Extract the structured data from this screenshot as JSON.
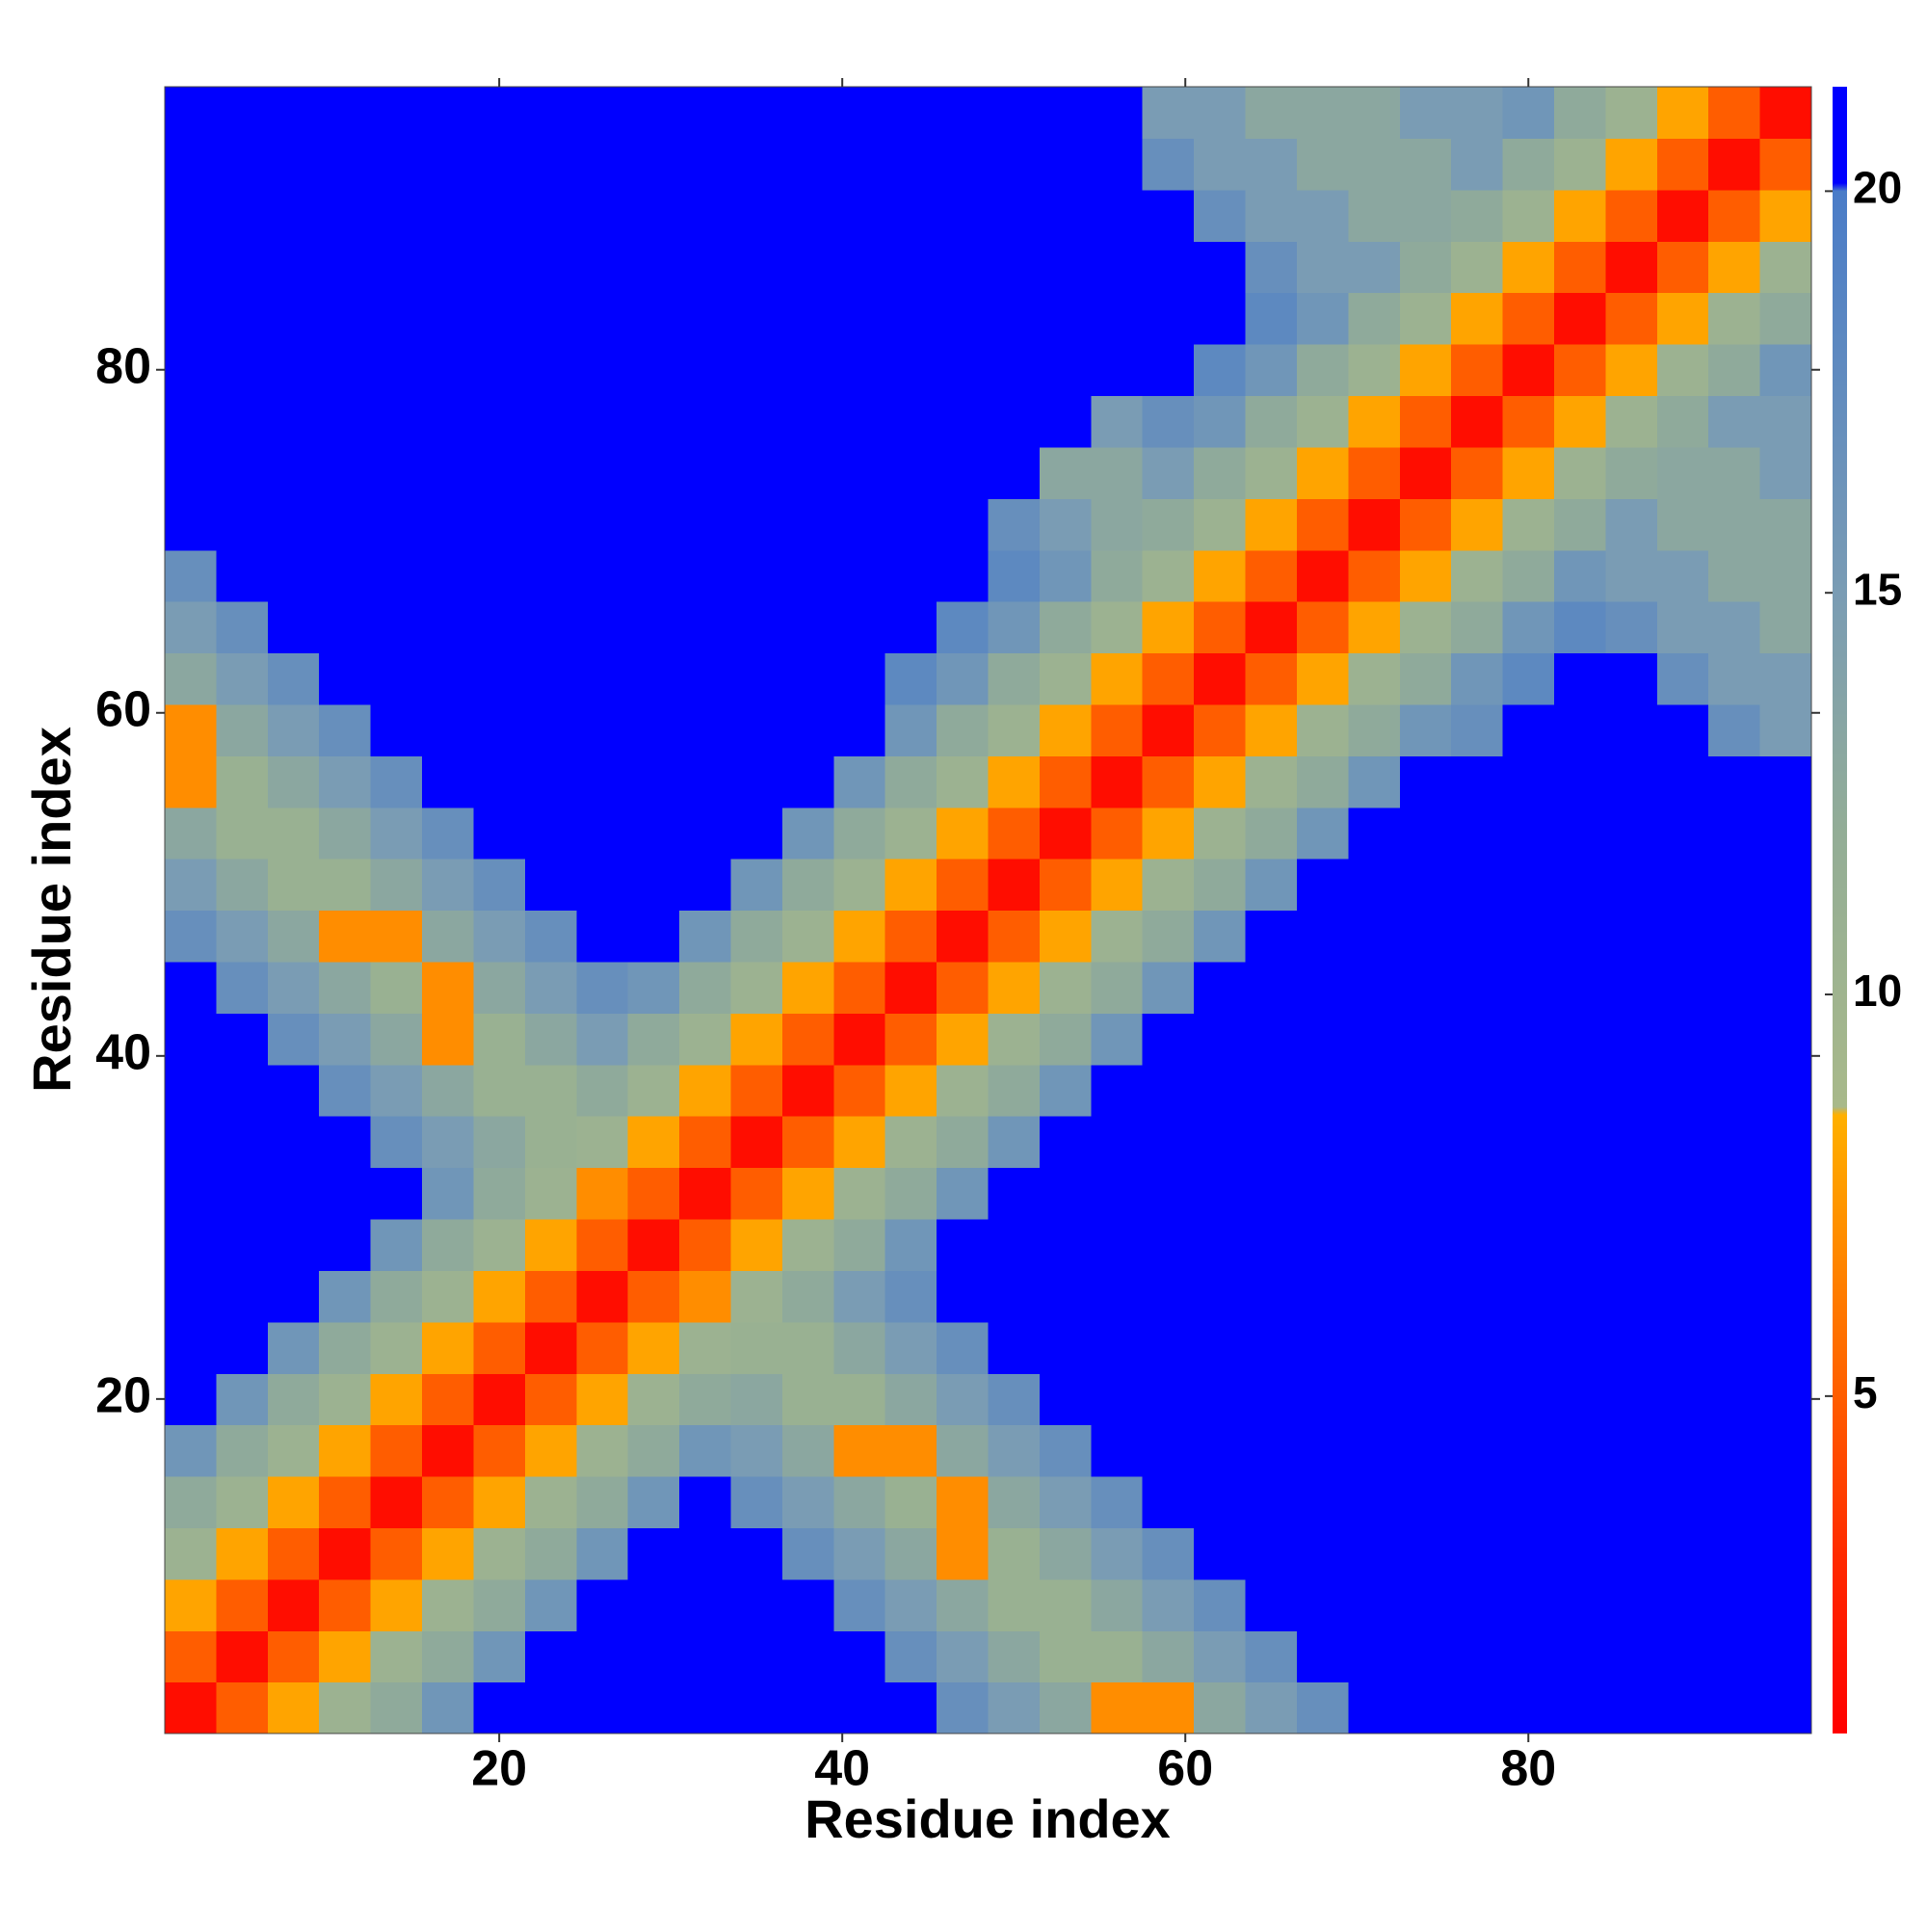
{
  "chart_data": {
    "type": "heatmap",
    "xlabel": "Residue index",
    "ylabel": "Residue index",
    "xlim": [
      0.5,
      96.5
    ],
    "ylim": [
      0.5,
      96.5
    ],
    "xticks": [
      20,
      40,
      60,
      80
    ],
    "yticks": [
      20,
      40,
      60,
      80
    ],
    "zlim": [
      0.8,
      21.3
    ],
    "colorbar_ticks": [
      5,
      10,
      15,
      20
    ],
    "colorscale": [
      [
        0.8,
        "#ff0000"
      ],
      [
        3,
        "#ff2a00"
      ],
      [
        5.5,
        "#ff6a00"
      ],
      [
        8.5,
        "#ffb000"
      ],
      [
        8.6,
        "#a8b98a"
      ],
      [
        12,
        "#93ad96"
      ],
      [
        15,
        "#7a9cb4"
      ],
      [
        20,
        "#4a7cc8"
      ],
      [
        20.1,
        "#0000ff"
      ],
      [
        21.3,
        "#0000ff"
      ]
    ],
    "x": [
      2,
      5,
      8,
      11,
      14,
      17,
      20,
      23,
      26,
      29,
      32,
      35,
      38,
      41,
      44,
      47,
      50,
      53,
      56,
      59,
      62,
      65,
      68,
      71,
      74,
      77,
      80,
      83,
      86,
      89,
      92,
      95
    ],
    "y": [
      2,
      5,
      8,
      11,
      14,
      17,
      20,
      23,
      26,
      29,
      32,
      35,
      38,
      41,
      44,
      47,
      50,
      53,
      56,
      59,
      62,
      65,
      68,
      71,
      74,
      77,
      80,
      83,
      86,
      89,
      92,
      95
    ],
    "z": [
      [
        1.5,
        5,
        8,
        10.5,
        12.5,
        16,
        21,
        21,
        21,
        21,
        21,
        21,
        21,
        21,
        21,
        17,
        15,
        13,
        7,
        7,
        13,
        15,
        17,
        21,
        21,
        21,
        21,
        21,
        21,
        21,
        21,
        21
      ],
      [
        5,
        1.5,
        5,
        8,
        10.5,
        12.5,
        16,
        21,
        21,
        21,
        21,
        21,
        21,
        21,
        17,
        15,
        13,
        11,
        11,
        13,
        15,
        17,
        21,
        21,
        21,
        21,
        21,
        21,
        21,
        21,
        21,
        21
      ],
      [
        8,
        5,
        1.5,
        5,
        8,
        10.5,
        12.5,
        16,
        21,
        21,
        21,
        21,
        21,
        17,
        15,
        13,
        11,
        11,
        13,
        15,
        17,
        21,
        21,
        21,
        21,
        21,
        21,
        21,
        21,
        21,
        21,
        21
      ],
      [
        10.5,
        8,
        5,
        1.5,
        5,
        8,
        10.5,
        12.5,
        16,
        21,
        21,
        21,
        17,
        15,
        13,
        7,
        11,
        13,
        15,
        17,
        21,
        21,
        21,
        21,
        21,
        21,
        21,
        21,
        21,
        21,
        21,
        21
      ],
      [
        12.5,
        10.5,
        8,
        5,
        1.5,
        5,
        8,
        10.5,
        12.5,
        16,
        21,
        17,
        15,
        13,
        11,
        7,
        13,
        15,
        17,
        21,
        21,
        21,
        21,
        21,
        21,
        21,
        21,
        21,
        21,
        21,
        21,
        21
      ],
      [
        16,
        12.5,
        10.5,
        8,
        5,
        1.5,
        5,
        8,
        10.5,
        12.5,
        16,
        15,
        13,
        7,
        7,
        13,
        15,
        17,
        21,
        21,
        21,
        21,
        21,
        21,
        21,
        21,
        21,
        21,
        21,
        21,
        21,
        21
      ],
      [
        21,
        16,
        12.5,
        10.5,
        8,
        5,
        1.5,
        5,
        8,
        10.5,
        12.5,
        13,
        11,
        11,
        13,
        15,
        17,
        21,
        21,
        21,
        21,
        21,
        21,
        21,
        21,
        21,
        21,
        21,
        21,
        21,
        21,
        21
      ],
      [
        21,
        21,
        16,
        12.5,
        10.5,
        8,
        5,
        1.5,
        5,
        8,
        10.5,
        11,
        11,
        13,
        15,
        17,
        21,
        21,
        21,
        21,
        21,
        21,
        21,
        21,
        21,
        21,
        21,
        21,
        21,
        21,
        21,
        21
      ],
      [
        21,
        21,
        21,
        16,
        12.5,
        10.5,
        8,
        5,
        1.5,
        5,
        7,
        10.5,
        12.5,
        15,
        17,
        21,
        21,
        21,
        21,
        21,
        21,
        21,
        21,
        21,
        21,
        21,
        21,
        21,
        21,
        21,
        21,
        21
      ],
      [
        21,
        21,
        21,
        21,
        16,
        12.5,
        10.5,
        8,
        5,
        1.5,
        5,
        8,
        10.5,
        12.5,
        16,
        21,
        21,
        21,
        21,
        21,
        21,
        21,
        21,
        21,
        21,
        21,
        21,
        21,
        21,
        21,
        21,
        21
      ],
      [
        21,
        21,
        21,
        21,
        21,
        16,
        12.5,
        10.5,
        7,
        5,
        1.5,
        5,
        8,
        10.5,
        12.5,
        16,
        21,
        21,
        21,
        21,
        21,
        21,
        21,
        21,
        21,
        21,
        21,
        21,
        21,
        21,
        21,
        21
      ],
      [
        21,
        21,
        21,
        21,
        17,
        15,
        13,
        11,
        10.5,
        8,
        5,
        1.5,
        5,
        8,
        10.5,
        12.5,
        16,
        21,
        21,
        21,
        21,
        21,
        21,
        21,
        21,
        21,
        21,
        21,
        21,
        21,
        21,
        21
      ],
      [
        21,
        21,
        21,
        17,
        15,
        13,
        11,
        11,
        12.5,
        10.5,
        8,
        5,
        1.5,
        5,
        8,
        10.5,
        12.5,
        16,
        21,
        21,
        21,
        21,
        21,
        21,
        21,
        21,
        21,
        21,
        21,
        21,
        21,
        21
      ],
      [
        21,
        21,
        17,
        15,
        13,
        7,
        11,
        13,
        15,
        12.5,
        10.5,
        8,
        5,
        1.5,
        5,
        8,
        10.5,
        12.5,
        16,
        21,
        21,
        21,
        21,
        21,
        21,
        21,
        21,
        21,
        21,
        21,
        21,
        21
      ],
      [
        21,
        17,
        15,
        13,
        11,
        7,
        13,
        15,
        17,
        16,
        12.5,
        10.5,
        8,
        5,
        1.5,
        5,
        8,
        10.5,
        12.5,
        16,
        21,
        21,
        21,
        21,
        21,
        21,
        21,
        21,
        21,
        21,
        21,
        21
      ],
      [
        17,
        15,
        13,
        7,
        7,
        13,
        15,
        17,
        21,
        21,
        16,
        12.5,
        10.5,
        8,
        5,
        1.5,
        5,
        8,
        10.5,
        12.5,
        16,
        21,
        21,
        21,
        21,
        21,
        21,
        21,
        21,
        21,
        21,
        21
      ],
      [
        15,
        13,
        11,
        11,
        13,
        15,
        17,
        21,
        21,
        21,
        21,
        16,
        12.5,
        10.5,
        8,
        5,
        1.5,
        5,
        8,
        10.5,
        12.5,
        16,
        21,
        21,
        21,
        21,
        21,
        21,
        21,
        21,
        21,
        21
      ],
      [
        13,
        11,
        11,
        13,
        15,
        17,
        21,
        21,
        21,
        21,
        21,
        21,
        16,
        12.5,
        10.5,
        8,
        5,
        1.5,
        5,
        8,
        10.5,
        12.5,
        16,
        21,
        21,
        21,
        21,
        21,
        21,
        21,
        21,
        21
      ],
      [
        7,
        11,
        13,
        15,
        17,
        21,
        21,
        21,
        21,
        21,
        21,
        21,
        21,
        16,
        12.5,
        10.5,
        8,
        5,
        1.5,
        5,
        8,
        10.5,
        12.5,
        16,
        21,
        21,
        21,
        21,
        21,
        21,
        21,
        21
      ],
      [
        7,
        13,
        15,
        17,
        21,
        21,
        21,
        21,
        21,
        21,
        21,
        21,
        21,
        21,
        16,
        12.5,
        10.5,
        8,
        5,
        1.5,
        5,
        8,
        10.5,
        12.5,
        16,
        17,
        21,
        21,
        21,
        21,
        17,
        15
      ],
      [
        13,
        15,
        17,
        21,
        21,
        21,
        21,
        21,
        21,
        21,
        21,
        21,
        21,
        21,
        18,
        16,
        12.5,
        10.5,
        8,
        5,
        1.5,
        5,
        8,
        10.5,
        12.5,
        16,
        18,
        21,
        21,
        17,
        15,
        15
      ],
      [
        15,
        17,
        21,
        21,
        21,
        21,
        21,
        21,
        21,
        21,
        21,
        21,
        21,
        21,
        21,
        18,
        16,
        12.5,
        10.5,
        8,
        5,
        1.5,
        5,
        8,
        10.5,
        12.5,
        16,
        18,
        17,
        15,
        15,
        13
      ],
      [
        17,
        21,
        21,
        21,
        21,
        21,
        21,
        21,
        21,
        21,
        21,
        21,
        21,
        21,
        21,
        21,
        18,
        16,
        12.5,
        10.5,
        8,
        5,
        1.5,
        5,
        8,
        10.5,
        12.5,
        16,
        15,
        15,
        13,
        13
      ],
      [
        21,
        21,
        21,
        21,
        21,
        21,
        21,
        21,
        21,
        21,
        21,
        21,
        21,
        21,
        21,
        21,
        17,
        15,
        13,
        12.5,
        10.5,
        8,
        5,
        1.5,
        5,
        8,
        10.5,
        12.5,
        15,
        13,
        13,
        13
      ],
      [
        21,
        21,
        21,
        21,
        21,
        21,
        21,
        21,
        21,
        21,
        21,
        21,
        21,
        21,
        21,
        21,
        21,
        13,
        13,
        15,
        12.5,
        10.5,
        8,
        5,
        1.5,
        5,
        8,
        10.5,
        12.5,
        13,
        13,
        15
      ],
      [
        21,
        21,
        21,
        21,
        21,
        21,
        21,
        21,
        21,
        21,
        21,
        21,
        21,
        21,
        21,
        21,
        21,
        21,
        15,
        17,
        16,
        12.5,
        10.5,
        8,
        5,
        1.5,
        5,
        8,
        10.5,
        12.5,
        15,
        15
      ],
      [
        21,
        21,
        21,
        21,
        21,
        21,
        21,
        21,
        21,
        21,
        21,
        21,
        21,
        21,
        21,
        21,
        21,
        21,
        21,
        21,
        18,
        16,
        12.5,
        10.5,
        8,
        5,
        1.5,
        5,
        8,
        10.5,
        12.5,
        16
      ],
      [
        21,
        21,
        21,
        21,
        21,
        21,
        21,
        21,
        21,
        21,
        21,
        21,
        21,
        21,
        21,
        21,
        21,
        21,
        21,
        21,
        21,
        18,
        16,
        12.5,
        10.5,
        8,
        5,
        1.5,
        5,
        8,
        10.5,
        12.5
      ],
      [
        21,
        21,
        21,
        21,
        21,
        21,
        21,
        21,
        21,
        21,
        21,
        21,
        21,
        21,
        21,
        21,
        21,
        21,
        21,
        21,
        21,
        17,
        15,
        15,
        12.5,
        10.5,
        8,
        5,
        1.5,
        5,
        8,
        10.5
      ],
      [
        21,
        21,
        21,
        21,
        21,
        21,
        21,
        21,
        21,
        21,
        21,
        21,
        21,
        21,
        21,
        21,
        21,
        21,
        21,
        21,
        17,
        15,
        15,
        13,
        13,
        12.5,
        10.5,
        8,
        5,
        1.5,
        5,
        8
      ],
      [
        21,
        21,
        21,
        21,
        21,
        21,
        21,
        21,
        21,
        21,
        21,
        21,
        21,
        21,
        21,
        21,
        21,
        21,
        21,
        17,
        15,
        15,
        13,
        13,
        13,
        15,
        12.5,
        10.5,
        8,
        5,
        1.5,
        5
      ],
      [
        21,
        21,
        21,
        21,
        21,
        21,
        21,
        21,
        21,
        21,
        21,
        21,
        21,
        21,
        21,
        21,
        21,
        21,
        21,
        15,
        15,
        13,
        13,
        13,
        15,
        15,
        16,
        12.5,
        10.5,
        8,
        5,
        1.5
      ]
    ]
  }
}
